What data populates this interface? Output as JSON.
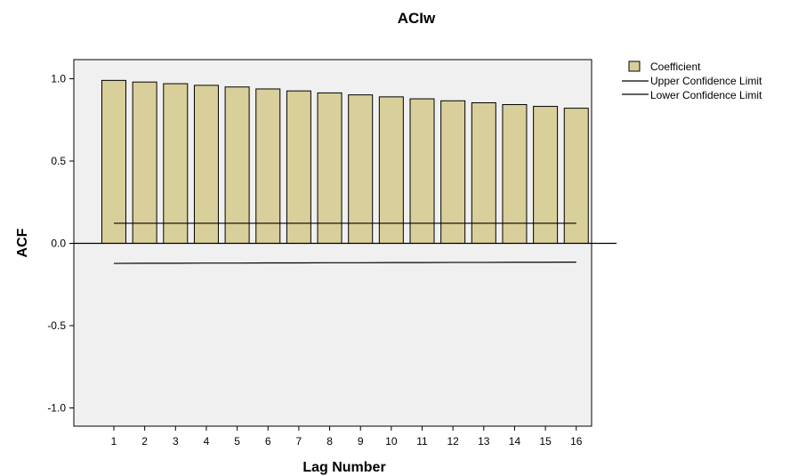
{
  "chart_data": {
    "type": "bar",
    "title": "ACIw",
    "xlabel": "Lag Number",
    "ylabel": "ACF",
    "categories": [
      "1",
      "2",
      "3",
      "4",
      "5",
      "6",
      "7",
      "8",
      "9",
      "10",
      "11",
      "12",
      "13",
      "14",
      "15",
      "16"
    ],
    "series": [
      {
        "name": "Coefficient",
        "values": [
          0.99,
          0.98,
          0.97,
          0.96,
          0.95,
          0.938,
          0.926,
          0.914,
          0.902,
          0.89,
          0.878,
          0.866,
          0.854,
          0.843,
          0.832,
          0.821
        ]
      }
    ],
    "upper_confidence_limit": {
      "name": "Upper Confidence Limit",
      "values": [
        0.122,
        0.122,
        0.122,
        0.122,
        0.122,
        0.122,
        0.122,
        0.122,
        0.122,
        0.122,
        0.122,
        0.122,
        0.122,
        0.122,
        0.122,
        0.122
      ]
    },
    "lower_confidence_limit": {
      "name": "Lower Confidence Limit",
      "values": [
        -0.122,
        -0.121,
        -0.121,
        -0.12,
        -0.12,
        -0.119,
        -0.119,
        -0.118,
        -0.118,
        -0.117,
        -0.117,
        -0.116,
        -0.116,
        -0.115,
        -0.115,
        -0.114
      ]
    },
    "ylim": [
      -1.1,
      1.1
    ],
    "yticks": [
      "1.0",
      "0.5",
      "0.0",
      "-0.5",
      "-1.0"
    ],
    "ytick_values": [
      1.0,
      0.5,
      0.0,
      -0.5,
      -1.0
    ],
    "legend": "right",
    "grid": false,
    "colors": {
      "bar_fill": "#d9cf9a",
      "bar_stroke": "#000000",
      "plot_bg": "#f0f0f0",
      "confidence_line": "#000000"
    }
  }
}
